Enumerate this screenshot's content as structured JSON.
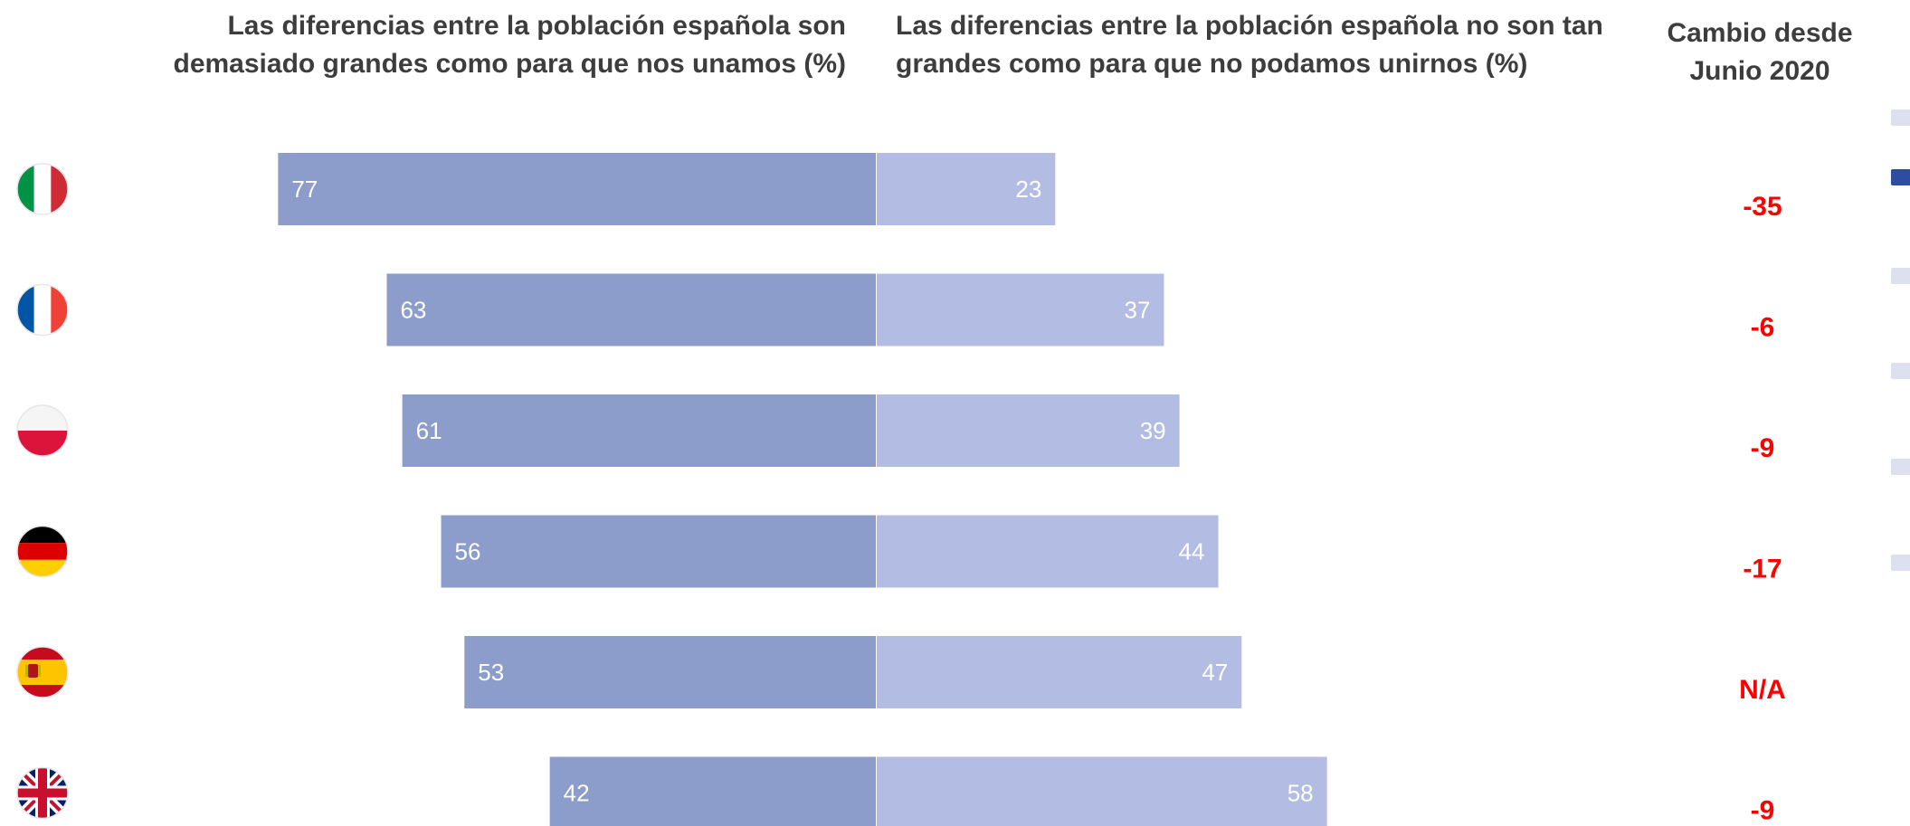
{
  "headers": {
    "left": "Las diferencias entre la población española son demasiado grandes como para que nos unamos (%)",
    "right": "Las diferencias entre la población española no son tan grandes como para que no podamos unirnos (%)",
    "change": "Cambio desde Junio 2020"
  },
  "colors": {
    "left_bar": "#8c9dcb",
    "right_bar": "#b3bde3",
    "change_text": "#ff0000",
    "marker_light": "#dde0ef",
    "marker_dark": "#2e4da0"
  },
  "chart_data": {
    "type": "bar",
    "orientation": "horizontal-diverging",
    "categories": [
      "Italia",
      "Francia",
      "Polonia",
      "Alemania",
      "España",
      "Reino Unido"
    ],
    "category_icons": [
      "flag-italy-icon",
      "flag-france-icon",
      "flag-poland-icon",
      "flag-germany-icon",
      "flag-spain-icon",
      "flag-uk-icon"
    ],
    "series": [
      {
        "values": [
          77,
          63,
          61,
          56,
          53,
          42
        ]
      },
      {
        "values": [
          23,
          37,
          39,
          44,
          47,
          58
        ]
      }
    ],
    "change_since_june_2020": [
      "-35",
      "-6",
      "-9",
      "-17",
      "N/A",
      "-9"
    ],
    "xlim": [
      0,
      100
    ],
    "grid": false,
    "legend": "none"
  }
}
